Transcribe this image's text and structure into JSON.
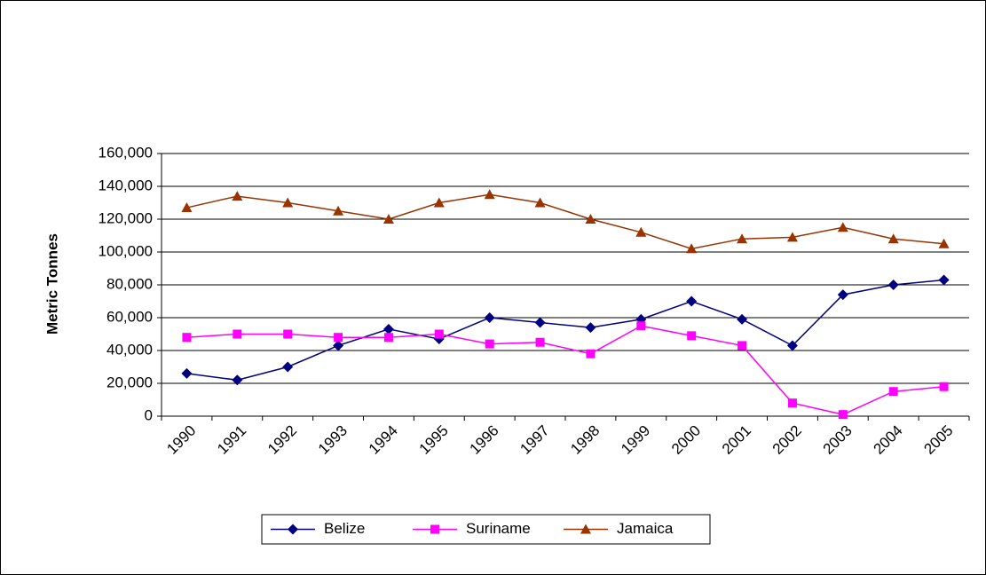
{
  "chart_data": {
    "type": "line",
    "y_label": "Metric Tonnes",
    "categories": [
      "1990",
      "1991",
      "1992",
      "1993",
      "1994",
      "1995",
      "1996",
      "1997",
      "1998",
      "1999",
      "2000",
      "2001",
      "2002",
      "2003",
      "2004",
      "2005"
    ],
    "series": [
      {
        "name": "Belize",
        "color": "#000080",
        "marker": "diamond",
        "values": [
          26000,
          22000,
          30000,
          43000,
          53000,
          47000,
          60000,
          57000,
          54000,
          59000,
          70000,
          59000,
          43000,
          74000,
          80000,
          83000
        ]
      },
      {
        "name": "Suriname",
        "color": "#ff00ff",
        "marker": "square",
        "values": [
          48000,
          50000,
          50000,
          48000,
          48000,
          50000,
          44000,
          45000,
          38000,
          55000,
          49000,
          43000,
          8000,
          1000,
          15000,
          18000
        ]
      },
      {
        "name": "Jamaica",
        "color": "#993300",
        "marker": "triangle",
        "values": [
          127000,
          134000,
          130000,
          125000,
          120000,
          130000,
          135000,
          130000,
          120000,
          112000,
          102000,
          108000,
          109000,
          115000,
          108000,
          105000
        ]
      }
    ],
    "ylim": [
      0,
      160000
    ],
    "yticks": [
      0,
      {
        "value": 20000,
        "label": "20,000"
      },
      {
        "value": 40000,
        "label": "40,000"
      },
      {
        "value": 60000,
        "label": "60,000"
      },
      {
        "value": 80000,
        "label": "80,000"
      },
      {
        "value": 100000,
        "label": "100,000"
      },
      {
        "value": 120000,
        "label": "120,000"
      },
      {
        "value": 140000,
        "label": "140,000"
      },
      {
        "value": 160000,
        "label": "160,000"
      }
    ],
    "grid": true,
    "legend": "bottom"
  }
}
